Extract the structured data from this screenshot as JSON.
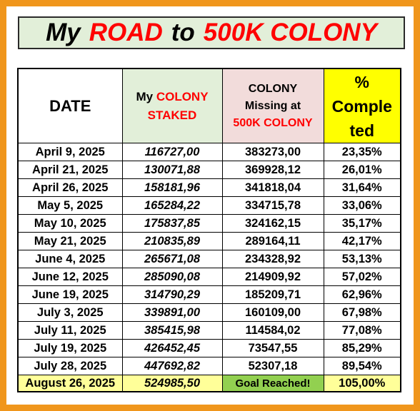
{
  "title": {
    "part1": "My",
    "part2": "ROAD",
    "part3": "to",
    "part4": "500K COLONY"
  },
  "headers": {
    "date": "DATE",
    "staked_line1_a": "My",
    "staked_line1_b": "COLONY",
    "staked_line2": "STAKED",
    "missing_line1": "COLONY",
    "missing_line2": "Missing at",
    "missing_line3": "500K COLONY",
    "pct_line1": "%",
    "pct_line2": "Comple",
    "pct_line3": "ted"
  },
  "rows": [
    {
      "date": "April 9, 2025",
      "staked": "116727,00",
      "missing": "383273,00",
      "pct": "23,35%"
    },
    {
      "date": "April 21, 2025",
      "staked": "130071,88",
      "missing": "369928,12",
      "pct": "26,01%"
    },
    {
      "date": "April 26, 2025",
      "staked": "158181,96",
      "missing": "341818,04",
      "pct": "31,64%"
    },
    {
      "date": "May 5, 2025",
      "staked": "165284,22",
      "missing": "334715,78",
      "pct": "33,06%"
    },
    {
      "date": "May 10, 2025",
      "staked": "175837,85",
      "missing": "324162,15",
      "pct": "35,17%"
    },
    {
      "date": "May 21, 2025",
      "staked": "210835,89",
      "missing": "289164,11",
      "pct": "42,17%"
    },
    {
      "date": "June 4, 2025",
      "staked": "265671,08",
      "missing": "234328,92",
      "pct": "53,13%"
    },
    {
      "date": "June 12, 2025",
      "staked": "285090,08",
      "missing": "214909,92",
      "pct": "57,02%"
    },
    {
      "date": "June 19, 2025",
      "staked": "314790,29",
      "missing": "185209,71",
      "pct": "62,96%"
    },
    {
      "date": "July 3, 2025",
      "staked": "339891,00",
      "missing": "160109,00",
      "pct": "67,98%"
    },
    {
      "date": "July 11, 2025",
      "staked": "385415,98",
      "missing": "114584,02",
      "pct": "77,08%"
    },
    {
      "date": "July 19, 2025",
      "staked": "426452,45",
      "missing": "73547,55",
      "pct": "85,29%"
    },
    {
      "date": "July 28, 2025",
      "staked": "447692,82",
      "missing": "52307,18",
      "pct": "89,54%"
    }
  ],
  "final_row": {
    "date": "August 26, 2025",
    "staked": "524985,50",
    "missing": "Goal Reached!",
    "pct": "105,00%"
  },
  "colors": {
    "frame": "#f0961c",
    "title_bg": "#e2efd9",
    "accent_red": "#ff0000",
    "staked_header_bg": "#e2efd9",
    "missing_header_bg": "#f2dcdb",
    "pct_header_bg": "#ffff00",
    "final_row_bg": "#ffff99",
    "goal_bg": "#92d050"
  }
}
